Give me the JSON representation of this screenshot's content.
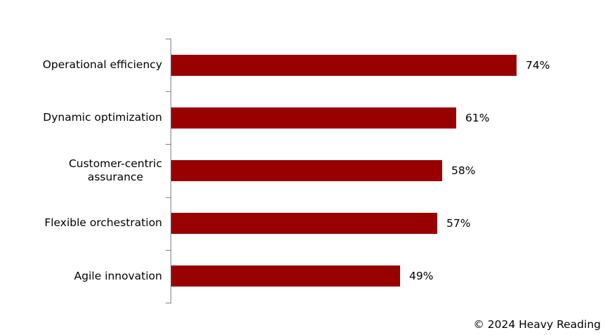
{
  "chart_data": {
    "type": "bar",
    "orientation": "horizontal",
    "title": "",
    "xlabel": "",
    "ylabel": "",
    "categories": [
      "Operational efficiency",
      "Dynamic optimization",
      "Customer-centric assurance",
      "Flexible orchestration",
      "Agile innovation"
    ],
    "values": [
      74,
      61,
      58,
      57,
      49
    ],
    "unit": "%",
    "rows": [
      {
        "label": "Operational efficiency",
        "value": 74,
        "value_label": "74%"
      },
      {
        "label": "Dynamic optimization",
        "value": 61,
        "value_label": "61%"
      },
      {
        "label": "Customer-centric\nassurance",
        "value": 58,
        "value_label": "58%"
      },
      {
        "label": "Flexible orchestration",
        "value": 57,
        "value_label": "57%"
      },
      {
        "label": "Agile innovation",
        "value": 49,
        "value_label": "49%"
      }
    ],
    "bar_color": "#990000",
    "axis_color": "#808080",
    "grid": false,
    "legend": false,
    "data_labels": true
  },
  "footer": {
    "attribution": "© 2024 Heavy Reading"
  }
}
